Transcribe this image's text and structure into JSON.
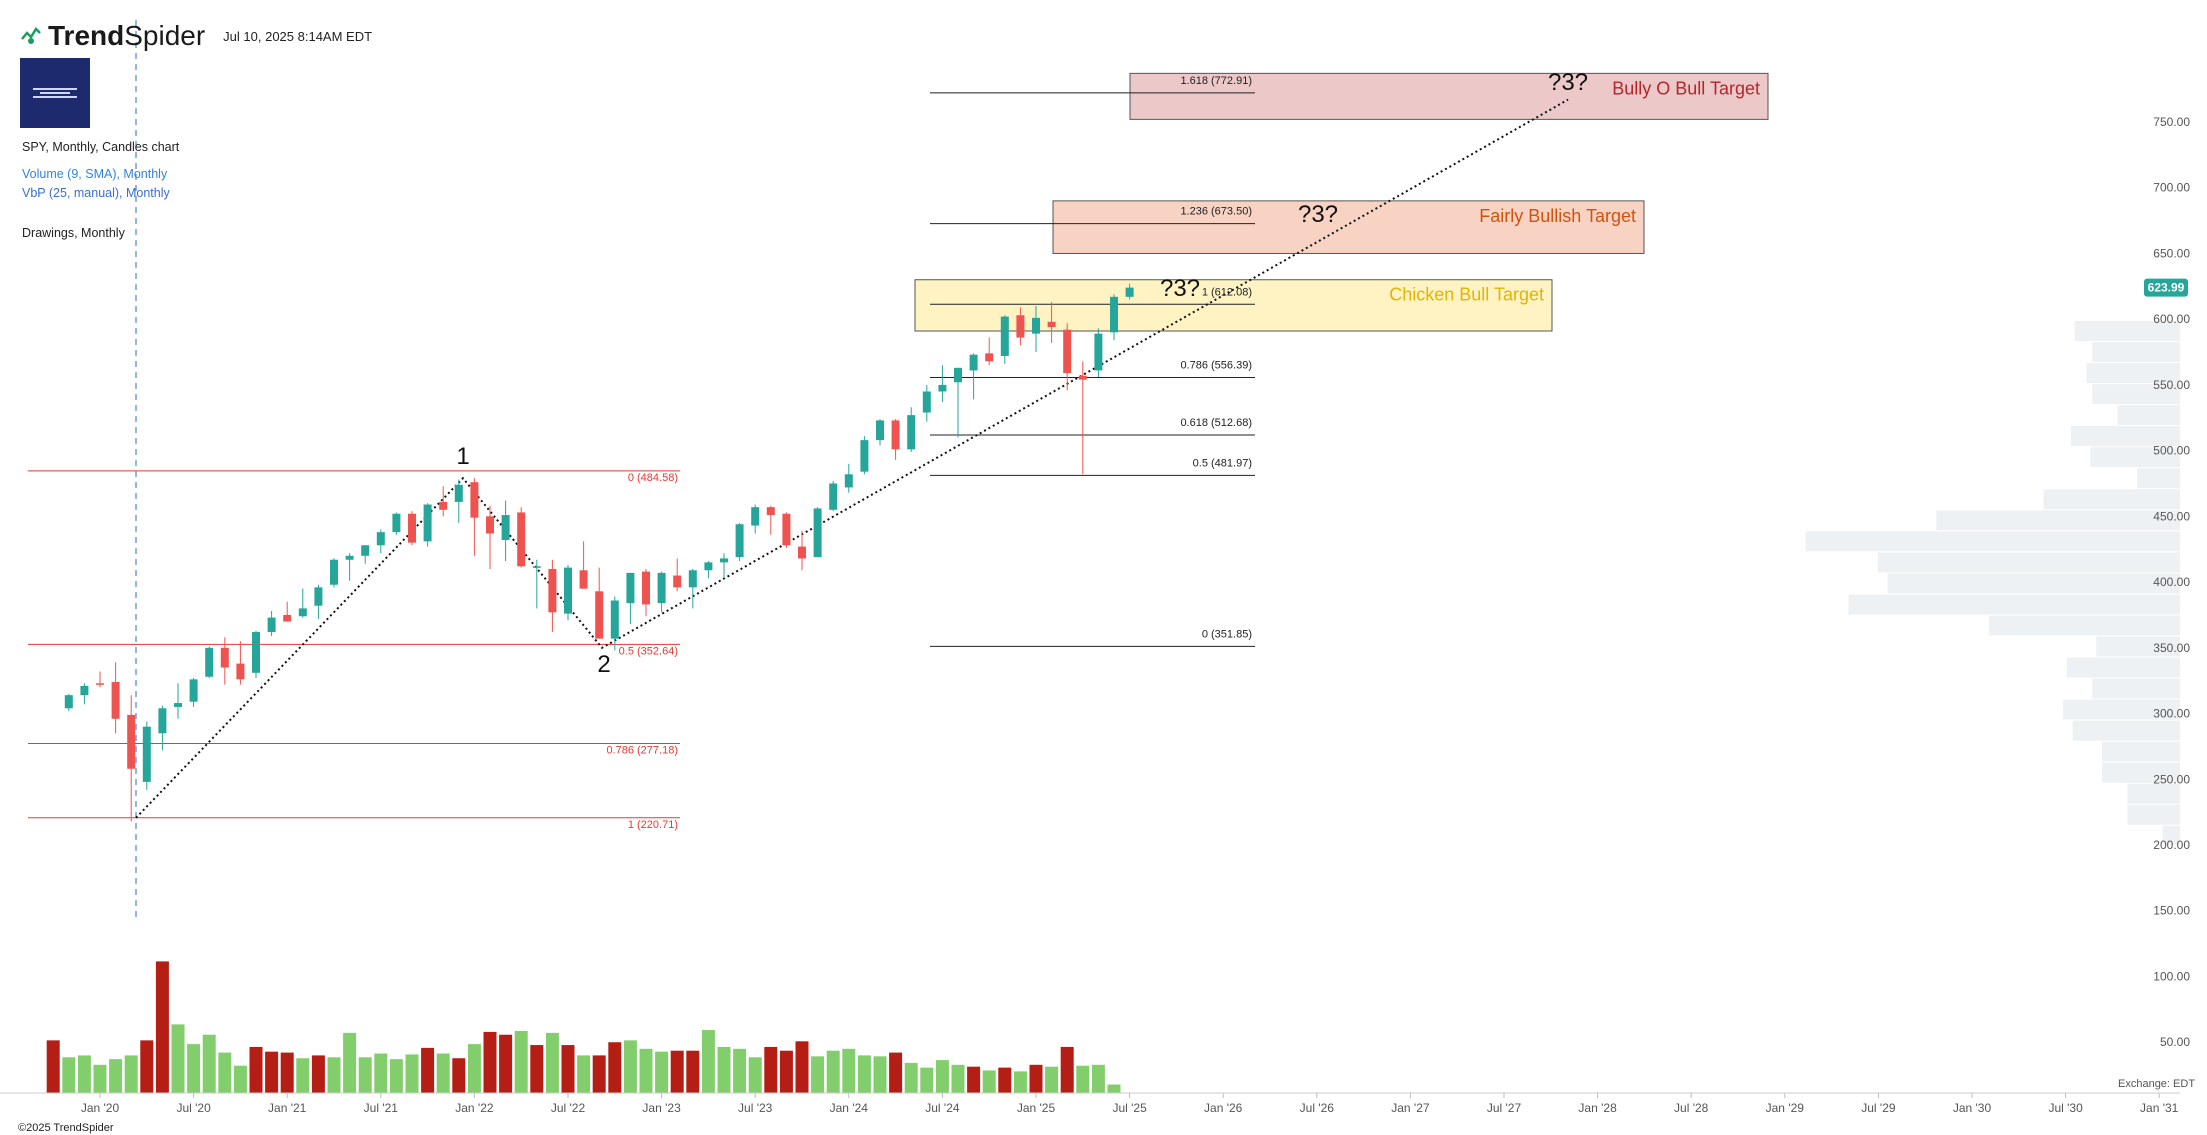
{
  "header": {
    "brand_bold": "Trend",
    "brand_light": "Spider",
    "datetime": "Jul 10, 2025 8:14AM EDT"
  },
  "legend": {
    "title": "SPY, Monthly, Candles chart",
    "volume": "Volume (9, SMA), Monthly",
    "vbp": "VbP (25, manual), Monthly",
    "drawings": "Drawings, Monthly"
  },
  "footer": {
    "copyright": "©2025 TrendSpider",
    "exchange": "Exchange: EDT"
  },
  "price_badge": "623.99",
  "colors": {
    "up": "#26a69a",
    "down": "#ef5350",
    "vol_up": "#82cd6c",
    "vol_down": "#b41e14",
    "fib_red": "#e53935",
    "fib_black": "#222222",
    "vbp": "#eef1f4",
    "chicken_fill": "#fff3c4",
    "chicken_text": "#e3b400",
    "fairly_fill": "#f8d3c3",
    "fairly_text": "#d0520e",
    "bully_fill": "#ecc8c8",
    "bully_text": "#b3262b"
  },
  "chart_data": {
    "type": "candlestick",
    "x_ticks": [
      "Jan '20",
      "Jul '20",
      "Jan '21",
      "Jul '21",
      "Jan '22",
      "Jul '22",
      "Jan '23",
      "Jul '23",
      "Jan '24",
      "Jul '24",
      "Jan '25",
      "Jul '25",
      "Jan '26",
      "Jul '26",
      "Jan '27",
      "Jul '27",
      "Jan '28",
      "Jul '28",
      "Jan '29",
      "Jul '29",
      "Jan '30",
      "Jul '30",
      "Jan '31"
    ],
    "y_ticks": [
      "50.00",
      "100.00",
      "150.00",
      "200.00",
      "250.00",
      "300.00",
      "350.00",
      "400.00",
      "450.00",
      "500.00",
      "550.00",
      "600.00",
      "650.00",
      "700.00",
      "750.00"
    ],
    "y_values": [
      50,
      100,
      150,
      200,
      250,
      300,
      350,
      400,
      450,
      500,
      550,
      600,
      650,
      700,
      750
    ],
    "candles": [
      {
        "d": "2019-11",
        "o": 304,
        "h": 315,
        "l": 302,
        "c": 314
      },
      {
        "d": "2019-12",
        "o": 314,
        "h": 323,
        "l": 307,
        "c": 321
      },
      {
        "d": "2020-01",
        "o": 323,
        "h": 332,
        "l": 320,
        "c": 322
      },
      {
        "d": "2020-02",
        "o": 324,
        "h": 339,
        "l": 285,
        "c": 296
      },
      {
        "d": "2020-03",
        "o": 299,
        "h": 314,
        "l": 218,
        "c": 258
      },
      {
        "d": "2020-04",
        "o": 248,
        "h": 294,
        "l": 242,
        "c": 290
      },
      {
        "d": "2020-05",
        "o": 285,
        "h": 306,
        "l": 272,
        "c": 304
      },
      {
        "d": "2020-06",
        "o": 305,
        "h": 323,
        "l": 296,
        "c": 308
      },
      {
        "d": "2020-07",
        "o": 309,
        "h": 327,
        "l": 305,
        "c": 326
      },
      {
        "d": "2020-08",
        "o": 328,
        "h": 351,
        "l": 327,
        "c": 350
      },
      {
        "d": "2020-09",
        "o": 350,
        "h": 358,
        "l": 322,
        "c": 335
      },
      {
        "d": "2020-10",
        "o": 338,
        "h": 355,
        "l": 322,
        "c": 326
      },
      {
        "d": "2020-11",
        "o": 331,
        "h": 363,
        "l": 327,
        "c": 362
      },
      {
        "d": "2020-12",
        "o": 362,
        "h": 378,
        "l": 359,
        "c": 373
      },
      {
        "d": "2021-01",
        "o": 375,
        "h": 385,
        "l": 370,
        "c": 370
      },
      {
        "d": "2021-02",
        "o": 374,
        "h": 395,
        "l": 373,
        "c": 380
      },
      {
        "d": "2021-03",
        "o": 382,
        "h": 398,
        "l": 372,
        "c": 396
      },
      {
        "d": "2021-04",
        "o": 398,
        "h": 418,
        "l": 396,
        "c": 417
      },
      {
        "d": "2021-05",
        "o": 417,
        "h": 422,
        "l": 401,
        "c": 420
      },
      {
        "d": "2021-06",
        "o": 420,
        "h": 428,
        "l": 414,
        "c": 428
      },
      {
        "d": "2021-07",
        "o": 428,
        "h": 440,
        "l": 422,
        "c": 438
      },
      {
        "d": "2021-08",
        "o": 438,
        "h": 453,
        "l": 436,
        "c": 452
      },
      {
        "d": "2021-09",
        "o": 452,
        "h": 454,
        "l": 428,
        "c": 430
      },
      {
        "d": "2021-10",
        "o": 431,
        "h": 460,
        "l": 427,
        "c": 459
      },
      {
        "d": "2021-11",
        "o": 461,
        "h": 473,
        "l": 450,
        "c": 455
      },
      {
        "d": "2021-12",
        "o": 461,
        "h": 478,
        "l": 445,
        "c": 474
      },
      {
        "d": "2022-01",
        "o": 476,
        "h": 479,
        "l": 420,
        "c": 449
      },
      {
        "d": "2022-02",
        "o": 450,
        "h": 458,
        "l": 410,
        "c": 437
      },
      {
        "d": "2022-03",
        "o": 432,
        "h": 462,
        "l": 416,
        "c": 451
      },
      {
        "d": "2022-04",
        "o": 453,
        "h": 457,
        "l": 411,
        "c": 412
      },
      {
        "d": "2022-05",
        "o": 412,
        "h": 417,
        "l": 380,
        "c": 412
      },
      {
        "d": "2022-06",
        "o": 410,
        "h": 417,
        "l": 362,
        "c": 377
      },
      {
        "d": "2022-07",
        "o": 376,
        "h": 413,
        "l": 371,
        "c": 411
      },
      {
        "d": "2022-08",
        "o": 409,
        "h": 431,
        "l": 395,
        "c": 395
      },
      {
        "d": "2022-09",
        "o": 393,
        "h": 411,
        "l": 357,
        "c": 357
      },
      {
        "d": "2022-10",
        "o": 357,
        "h": 389,
        "l": 348,
        "c": 386
      },
      {
        "d": "2022-11",
        "o": 384,
        "h": 407,
        "l": 368,
        "c": 407
      },
      {
        "d": "2022-12",
        "o": 408,
        "h": 410,
        "l": 374,
        "c": 383
      },
      {
        "d": "2023-01",
        "o": 384,
        "h": 408,
        "l": 377,
        "c": 407
      },
      {
        "d": "2023-02",
        "o": 405,
        "h": 418,
        "l": 393,
        "c": 396
      },
      {
        "d": "2023-03",
        "o": 396,
        "h": 410,
        "l": 380,
        "c": 409
      },
      {
        "d": "2023-04",
        "o": 409,
        "h": 416,
        "l": 403,
        "c": 415
      },
      {
        "d": "2023-05",
        "o": 415,
        "h": 422,
        "l": 403,
        "c": 418
      },
      {
        "d": "2023-06",
        "o": 419,
        "h": 445,
        "l": 416,
        "c": 444
      },
      {
        "d": "2023-07",
        "o": 443,
        "h": 459,
        "l": 437,
        "c": 457
      },
      {
        "d": "2023-08",
        "o": 457,
        "h": 458,
        "l": 436,
        "c": 451
      },
      {
        "d": "2023-09",
        "o": 452,
        "h": 453,
        "l": 426,
        "c": 428
      },
      {
        "d": "2023-10",
        "o": 427,
        "h": 439,
        "l": 409,
        "c": 418
      },
      {
        "d": "2023-11",
        "o": 419,
        "h": 457,
        "l": 419,
        "c": 456
      },
      {
        "d": "2023-12",
        "o": 455,
        "h": 477,
        "l": 454,
        "c": 475
      },
      {
        "d": "2024-01",
        "o": 472,
        "h": 490,
        "l": 468,
        "c": 482
      },
      {
        "d": "2024-02",
        "o": 484,
        "h": 511,
        "l": 482,
        "c": 508
      },
      {
        "d": "2024-03",
        "o": 508,
        "h": 524,
        "l": 504,
        "c": 523
      },
      {
        "d": "2024-04",
        "o": 523,
        "h": 524,
        "l": 493,
        "c": 501
      },
      {
        "d": "2024-05",
        "o": 501,
        "h": 533,
        "l": 499,
        "c": 527
      },
      {
        "d": "2024-06",
        "o": 529,
        "h": 550,
        "l": 522,
        "c": 545
      },
      {
        "d": "2024-07",
        "o": 545,
        "h": 565,
        "l": 537,
        "c": 550
      },
      {
        "d": "2024-08",
        "o": 552,
        "h": 563,
        "l": 510,
        "c": 563
      },
      {
        "d": "2024-09",
        "o": 561,
        "h": 574,
        "l": 539,
        "c": 573
      },
      {
        "d": "2024-10",
        "o": 574,
        "h": 586,
        "l": 565,
        "c": 568
      },
      {
        "d": "2024-11",
        "o": 572,
        "h": 603,
        "l": 566,
        "c": 602
      },
      {
        "d": "2024-12",
        "o": 603,
        "h": 609,
        "l": 580,
        "c": 586
      },
      {
        "d": "2025-01",
        "o": 589,
        "h": 610,
        "l": 575,
        "c": 601
      },
      {
        "d": "2025-02",
        "o": 598,
        "h": 613,
        "l": 582,
        "c": 594
      },
      {
        "d": "2025-03",
        "o": 592,
        "h": 597,
        "l": 546,
        "c": 559
      },
      {
        "d": "2025-04",
        "o": 557,
        "h": 568,
        "l": 482,
        "c": 554
      },
      {
        "d": "2025-05",
        "o": 561,
        "h": 593,
        "l": 556,
        "c": 589
      },
      {
        "d": "2025-06",
        "o": 590,
        "h": 619,
        "l": 584,
        "c": 617
      },
      {
        "d": "2025-07",
        "o": 617,
        "h": 627,
        "l": 615,
        "c": 624
      }
    ],
    "volume_label_values": [
      "50.00",
      "100.00",
      "150.00"
    ],
    "fib_left": {
      "levels": [
        {
          "label": "0 (484.58)",
          "value": 484.58
        },
        {
          "label": "0.5 (352.64)",
          "value": 352.64
        },
        {
          "label": "0.786 (277.18)",
          "value": 277.18
        },
        {
          "label": "1 (220.71)",
          "value": 220.71
        }
      ]
    },
    "fib_right": {
      "levels": [
        {
          "label": "1.618 (772.91)",
          "value": 772.91
        },
        {
          "label": "1.236 (673.50)",
          "value": 673.5
        },
        {
          "label": "1 (612.08)",
          "value": 612.08
        },
        {
          "label": "0.786 (556.39)",
          "value": 556.39
        },
        {
          "label": "0.618 (512.68)",
          "value": 512.68
        },
        {
          "label": "0.5 (481.97)",
          "value": 481.97
        },
        {
          "label": "0 (351.85)",
          "value": 351.85
        }
      ]
    },
    "targets": [
      {
        "label": "Chicken Bull Target",
        "y_top": 630,
        "y_bottom": 591
      },
      {
        "label": "Fairly Bullish Target",
        "y_top": 690,
        "y_bottom": 650
      },
      {
        "label": "Bully O Bull Target",
        "y_top": 787,
        "y_bottom": 752
      }
    ],
    "wave_labels": [
      "1",
      "2"
    ],
    "question_labels": [
      "?3?",
      "?3?",
      "?3?"
    ],
    "vbp_bins": [
      {
        "from": 200,
        "to": 215,
        "strength": 0.09
      },
      {
        "from": 215,
        "to": 231,
        "strength": 0.27
      },
      {
        "from": 231,
        "to": 247,
        "strength": 0.27
      },
      {
        "from": 247,
        "to": 263,
        "strength": 0.4
      },
      {
        "from": 263,
        "to": 279,
        "strength": 0.4
      },
      {
        "from": 279,
        "to": 295,
        "strength": 0.55
      },
      {
        "from": 295,
        "to": 311,
        "strength": 0.6
      },
      {
        "from": 311,
        "to": 327,
        "strength": 0.45
      },
      {
        "from": 327,
        "to": 343,
        "strength": 0.58
      },
      {
        "from": 343,
        "to": 359,
        "strength": 0.43
      },
      {
        "from": 359,
        "to": 375,
        "strength": 0.98
      },
      {
        "from": 375,
        "to": 391,
        "strength": 1.7
      },
      {
        "from": 391,
        "to": 407,
        "strength": 1.5
      },
      {
        "from": 407,
        "to": 423,
        "strength": 1.55
      },
      {
        "from": 423,
        "to": 439,
        "strength": 1.92
      },
      {
        "from": 439,
        "to": 455,
        "strength": 1.25
      },
      {
        "from": 455,
        "to": 471,
        "strength": 0.7
      },
      {
        "from": 471,
        "to": 487,
        "strength": 0.22
      },
      {
        "from": 487,
        "to": 503,
        "strength": 0.46
      },
      {
        "from": 503,
        "to": 519,
        "strength": 0.56
      },
      {
        "from": 519,
        "to": 535,
        "strength": 0.32
      },
      {
        "from": 535,
        "to": 551,
        "strength": 0.45
      },
      {
        "from": 551,
        "to": 567,
        "strength": 0.48
      },
      {
        "from": 567,
        "to": 583,
        "strength": 0.45
      },
      {
        "from": 583,
        "to": 599,
        "strength": 0.54
      }
    ],
    "volume": [
      {
        "d": "2019-10",
        "v": 56,
        "up": false
      },
      {
        "d": "2019-11",
        "v": 38,
        "up": true
      },
      {
        "d": "2019-12",
        "v": 40,
        "up": true
      },
      {
        "d": "2020-01",
        "v": 30,
        "up": true
      },
      {
        "d": "2020-02",
        "v": 36,
        "up": true
      },
      {
        "d": "2020-03",
        "v": 40,
        "up": true
      },
      {
        "d": "2020-04",
        "v": 56,
        "up": false
      },
      {
        "d": "2020-05",
        "v": 140,
        "up": false
      },
      {
        "d": "2020-06",
        "v": 73,
        "up": true
      },
      {
        "d": "2020-07",
        "v": 52,
        "up": true
      },
      {
        "d": "2020-08",
        "v": 62,
        "up": true
      },
      {
        "d": "2020-09",
        "v": 43,
        "up": true
      },
      {
        "d": "2020-10",
        "v": 29,
        "up": true
      },
      {
        "d": "2020-11",
        "v": 49,
        "up": false
      },
      {
        "d": "2020-12",
        "v": 44,
        "up": false
      },
      {
        "d": "2021-01",
        "v": 43,
        "up": false
      },
      {
        "d": "2021-02",
        "v": 37,
        "up": true
      },
      {
        "d": "2021-03",
        "v": 40,
        "up": false
      },
      {
        "d": "2021-04",
        "v": 38,
        "up": true
      },
      {
        "d": "2021-05",
        "v": 64,
        "up": true
      },
      {
        "d": "2021-06",
        "v": 38,
        "up": true
      },
      {
        "d": "2021-07",
        "v": 42,
        "up": true
      },
      {
        "d": "2021-08",
        "v": 36,
        "up": true
      },
      {
        "d": "2021-09",
        "v": 41,
        "up": true
      },
      {
        "d": "2021-10",
        "v": 48,
        "up": false
      },
      {
        "d": "2021-11",
        "v": 42,
        "up": true
      },
      {
        "d": "2021-12",
        "v": 37,
        "up": false
      },
      {
        "d": "2022-01",
        "v": 52,
        "up": true
      },
      {
        "d": "2022-02",
        "v": 65,
        "up": false
      },
      {
        "d": "2022-03",
        "v": 62,
        "up": false
      },
      {
        "d": "2022-04",
        "v": 66,
        "up": true
      },
      {
        "d": "2022-05",
        "v": 51,
        "up": false
      },
      {
        "d": "2022-06",
        "v": 64,
        "up": true
      },
      {
        "d": "2022-07",
        "v": 51,
        "up": false
      },
      {
        "d": "2022-08",
        "v": 40,
        "up": true
      },
      {
        "d": "2022-09",
        "v": 40,
        "up": false
      },
      {
        "d": "2022-10",
        "v": 54,
        "up": false
      },
      {
        "d": "2022-11",
        "v": 56,
        "up": true
      },
      {
        "d": "2022-12",
        "v": 47,
        "up": true
      },
      {
        "d": "2023-01",
        "v": 44,
        "up": true
      },
      {
        "d": "2023-02",
        "v": 45,
        "up": false
      },
      {
        "d": "2023-03",
        "v": 45,
        "up": false
      },
      {
        "d": "2023-04",
        "v": 67,
        "up": true
      },
      {
        "d": "2023-05",
        "v": 49,
        "up": true
      },
      {
        "d": "2023-06",
        "v": 47,
        "up": true
      },
      {
        "d": "2023-07",
        "v": 38,
        "up": true
      },
      {
        "d": "2023-08",
        "v": 49,
        "up": false
      },
      {
        "d": "2023-09",
        "v": 45,
        "up": false
      },
      {
        "d": "2023-10",
        "v": 55,
        "up": false
      },
      {
        "d": "2023-11",
        "v": 39,
        "up": true
      },
      {
        "d": "2023-12",
        "v": 45,
        "up": true
      },
      {
        "d": "2024-01",
        "v": 47,
        "up": true
      },
      {
        "d": "2024-02",
        "v": 40,
        "up": true
      },
      {
        "d": "2024-03",
        "v": 39,
        "up": true
      },
      {
        "d": "2024-04",
        "v": 43,
        "up": false
      },
      {
        "d": "2024-05",
        "v": 32,
        "up": true
      },
      {
        "d": "2024-06",
        "v": 27,
        "up": true
      },
      {
        "d": "2024-07",
        "v": 35,
        "up": true
      },
      {
        "d": "2024-08",
        "v": 30,
        "up": true
      },
      {
        "d": "2024-09",
        "v": 28,
        "up": false
      },
      {
        "d": "2024-10",
        "v": 24,
        "up": true
      },
      {
        "d": "2024-11",
        "v": 27,
        "up": false
      },
      {
        "d": "2024-12",
        "v": 23,
        "up": true
      },
      {
        "d": "2025-01",
        "v": 30,
        "up": false
      },
      {
        "d": "2025-02",
        "v": 28,
        "up": true
      },
      {
        "d": "2025-03",
        "v": 49,
        "up": false
      },
      {
        "d": "2025-04",
        "v": 29,
        "up": true
      },
      {
        "d": "2025-05",
        "v": 30,
        "up": true
      },
      {
        "d": "2025-06",
        "v": 9,
        "up": true
      }
    ]
  }
}
